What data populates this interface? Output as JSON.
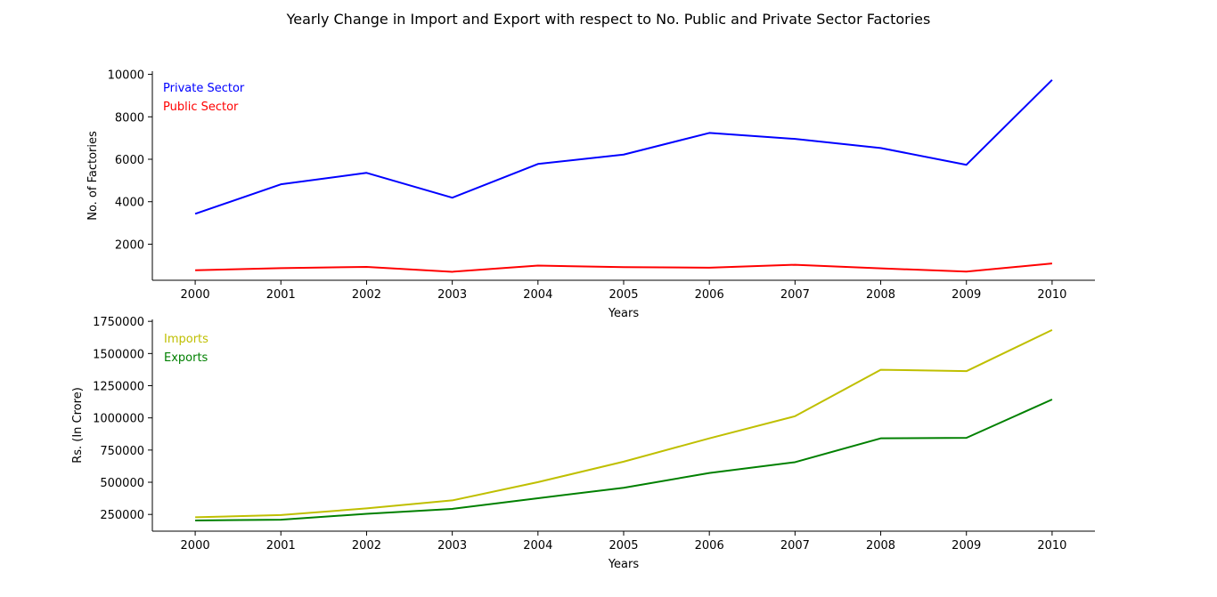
{
  "suptitle": "Yearly Change in Import and Export with respect to No. Public and Private Sector Factories",
  "chart_data": [
    {
      "type": "line",
      "title": "",
      "xlabel": "Years",
      "ylabel": "No. of Factories",
      "x": [
        2000,
        2001,
        2002,
        2003,
        2004,
        2005,
        2006,
        2007,
        2008,
        2009,
        2010
      ],
      "xlim": [
        1999.5,
        2010.5
      ],
      "ylim": [
        300,
        10150
      ],
      "yticks": [
        2000,
        4000,
        6000,
        8000,
        10000
      ],
      "legend_placement": "upper-left",
      "grid": false,
      "series": [
        {
          "name": "Private Sector",
          "color": "#0000ff",
          "values": [
            3430,
            4820,
            5360,
            4190,
            5780,
            6220,
            7240,
            6960,
            6530,
            5740,
            9740
          ]
        },
        {
          "name": "Public Sector",
          "color": "#ff0000",
          "values": [
            770,
            870,
            930,
            700,
            990,
            920,
            890,
            1030,
            860,
            710,
            1090
          ]
        }
      ]
    },
    {
      "type": "line",
      "title": "",
      "xlabel": "Years",
      "ylabel": "Rs. (In Crore)",
      "x": [
        2000,
        2001,
        2002,
        2003,
        2004,
        2005,
        2006,
        2007,
        2008,
        2009,
        2010
      ],
      "xlim": [
        1999.5,
        2010.5
      ],
      "ylim": [
        120000,
        1765000
      ],
      "yticks": [
        250000,
        500000,
        750000,
        1000000,
        1250000,
        1500000,
        1750000
      ],
      "legend_placement": "upper-left",
      "grid": false,
      "series": [
        {
          "name": "Imports",
          "color": "#bfbf00",
          "values": [
            228000,
            245000,
            297000,
            359000,
            501000,
            660000,
            841000,
            1013000,
            1374000,
            1363000,
            1683000
          ]
        },
        {
          "name": "Exports",
          "color": "#008000",
          "values": [
            203000,
            209000,
            255000,
            293000,
            376000,
            457000,
            572000,
            656000,
            841000,
            845000,
            1143000
          ]
        }
      ]
    }
  ]
}
